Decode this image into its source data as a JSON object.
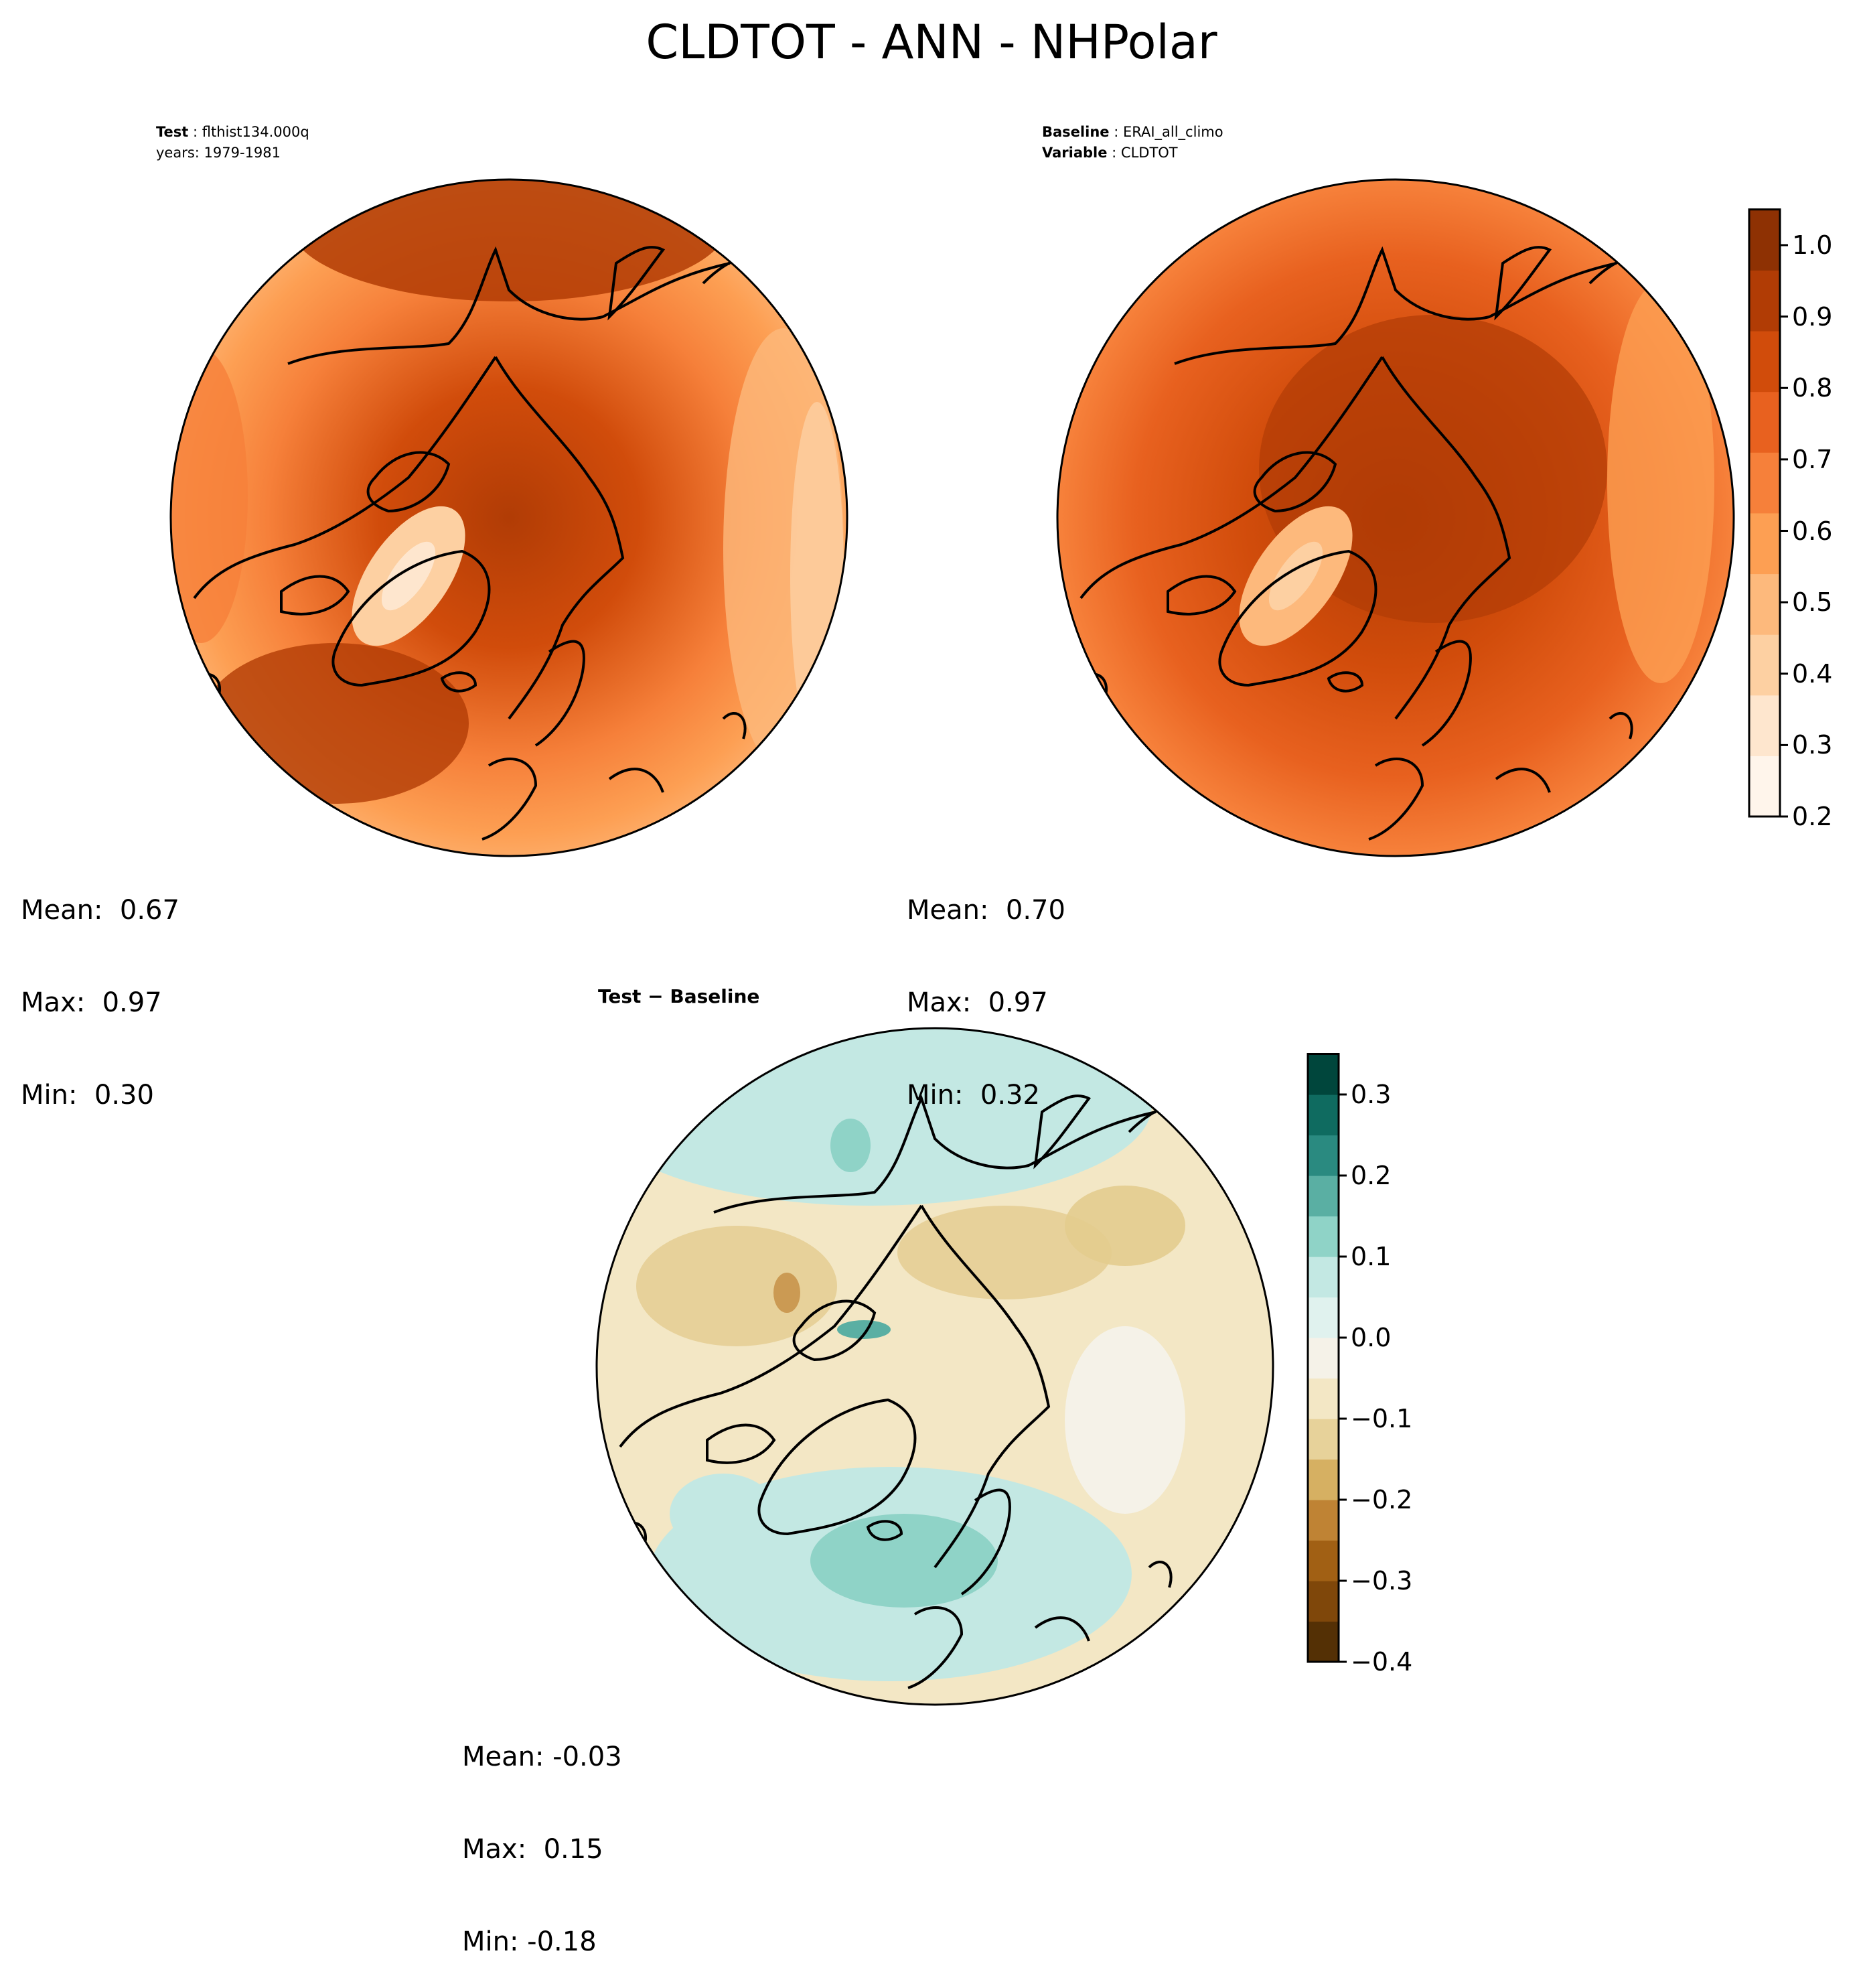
{
  "title": "CLDTOT - ANN - NHPolar",
  "panels": {
    "test": {
      "label_key": "Test",
      "label_value": "flthist134.000q",
      "line2": "years: 1979-1981",
      "stats": {
        "mean": "Mean:  0.67",
        "max": "Max:  0.97",
        "min": "Min:  0.30"
      },
      "mean_value": 0.67,
      "max_value": 0.97,
      "min_value": 0.3
    },
    "baseline": {
      "label_key": "Baseline",
      "label_value": "ERAI_all_climo",
      "label2_key": "Variable",
      "label2_value": "CLDTOT",
      "stats": {
        "mean": "Mean:  0.70",
        "max": "Max:  0.97",
        "min": "Min:  0.32"
      },
      "mean_value": 0.7,
      "max_value": 0.97,
      "min_value": 0.32
    },
    "diff": {
      "title": "Test − Baseline",
      "stats": {
        "mean": "Mean: -0.03",
        "max": "Max:  0.15",
        "min": "Min: -0.18"
      },
      "mean_value": -0.03,
      "max_value": 0.15,
      "min_value": -0.18
    }
  },
  "colorbars": {
    "main": {
      "ticks": [
        "0.2",
        "0.3",
        "0.4",
        "0.5",
        "0.6",
        "0.7",
        "0.8",
        "0.9",
        "1.0"
      ],
      "range": [
        0.2,
        1.05
      ],
      "colors": [
        "#fff5eb",
        "#fee6ce",
        "#fdd0a2",
        "#fdb97c",
        "#fd9f53",
        "#f6803a",
        "#e8611f",
        "#d14c0b",
        "#b13c05",
        "#8e3103"
      ]
    },
    "diff": {
      "ticks": [
        "−0.4",
        "−0.3",
        "−0.2",
        "−0.1",
        "0.0",
        "0.1",
        "0.2",
        "0.3"
      ],
      "range": [
        -0.4,
        0.35
      ],
      "colors": [
        "#543005",
        "#7f470a",
        "#a16014",
        "#bf8334",
        "#d6b062",
        "#e7d29a",
        "#f3e7c5",
        "#f5f2e8",
        "#e0f2ee",
        "#c3e8e3",
        "#8fd3c7",
        "#5aafa3",
        "#2a8a80",
        "#0f6b60",
        "#00463c"
      ]
    }
  },
  "map_colors": {
    "land_outline": "#000000",
    "greenland_test_low": "#fdd0a2",
    "diff_positive": "#8fd3c7",
    "diff_negative": "#e3cc8e"
  }
}
